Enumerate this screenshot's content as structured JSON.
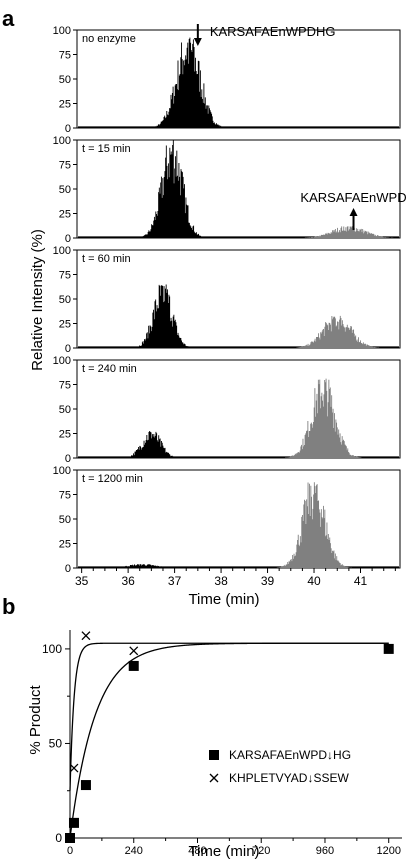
{
  "chart_data": [
    {
      "panel_label": "a",
      "type": "area",
      "ylabel": "Relative Intensity (%)",
      "xlabel": "Time (min)",
      "xlim": [
        34.9,
        41.85
      ],
      "x_ticks": [
        35,
        36,
        37,
        38,
        39,
        40,
        41
      ],
      "ylim": [
        0,
        100
      ],
      "y_ticks": [
        0,
        25,
        50,
        75,
        100
      ],
      "colors": {
        "substrate": "#000000",
        "product": "#808080"
      },
      "annotations": [
        {
          "text": "KARSAFAEnWPDHG",
          "arrow": "down",
          "x": 37.5
        },
        {
          "text": "KARSAFAEnWPD",
          "arrow": "up",
          "x": 40.85
        }
      ],
      "panels": [
        {
          "label": "no enzyme",
          "series": [
            {
              "center": 37.3,
              "sd": 0.25,
              "peak": 95,
              "color": "#000000"
            }
          ]
        },
        {
          "label": "t = 15 min",
          "series": [
            {
              "center": 36.95,
              "sd": 0.22,
              "peak": 100,
              "color": "#000000"
            },
            {
              "center": 40.75,
              "sd": 0.35,
              "peak": 12,
              "color": "#808080"
            }
          ]
        },
        {
          "label": "t = 60 min",
          "series": [
            {
              "center": 36.75,
              "sd": 0.2,
              "peak": 65,
              "color": "#000000"
            },
            {
              "center": 40.5,
              "sd": 0.3,
              "peak": 33,
              "color": "#808080"
            }
          ]
        },
        {
          "label": "t = 240 min",
          "series": [
            {
              "center": 36.5,
              "sd": 0.2,
              "peak": 28,
              "color": "#000000"
            },
            {
              "center": 40.2,
              "sd": 0.25,
              "peak": 82,
              "color": "#808080"
            }
          ]
        },
        {
          "label": "t = 1200 min",
          "series": [
            {
              "center": 36.3,
              "sd": 0.3,
              "peak": 4,
              "color": "#000000"
            },
            {
              "center": 40.0,
              "sd": 0.24,
              "peak": 88,
              "color": "#808080"
            }
          ]
        }
      ]
    },
    {
      "panel_label": "b",
      "type": "scatter",
      "xlabel": "Time (min)",
      "ylabel": "% Product",
      "xlim": [
        0,
        1250
      ],
      "x_ticks": [
        0,
        240,
        480,
        720,
        960,
        1200
      ],
      "ylim": [
        0,
        110
      ],
      "y_ticks": [
        0,
        50,
        100
      ],
      "legend_position": "right",
      "series": [
        {
          "name": "KARSAFAEnWPD↓HG",
          "marker": "square",
          "x": [
            0,
            15,
            60,
            240,
            1200
          ],
          "y": [
            0,
            8,
            28,
            91,
            100
          ],
          "fit": {
            "plateau": 103,
            "k": 0.0105
          }
        },
        {
          "name": "KHPLETVYAD↓SSEW",
          "marker": "x",
          "x": [
            15,
            60,
            240
          ],
          "y": [
            37,
            107,
            99
          ],
          "fit": {
            "plateau": 103,
            "k": 0.065
          }
        }
      ]
    }
  ]
}
